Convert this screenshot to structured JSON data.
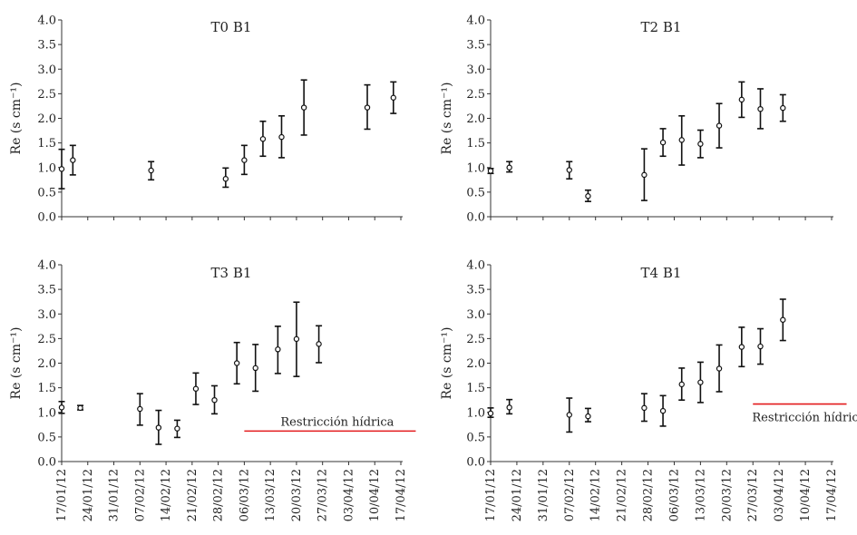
{
  "chart_data": {
    "type": "scatter",
    "y_axis_label": "Re (s cm⁻¹)",
    "ylim": [
      0,
      4.0
    ],
    "y_ticks": [
      "0.0",
      "0.5",
      "1.0",
      "1.5",
      "2.0",
      "2.5",
      "3.0",
      "3.5",
      "4.0"
    ],
    "x_ticks": [
      "17/01/12",
      "24/01/12",
      "31/01/12",
      "07/02/12",
      "14/02/12",
      "21/02/12",
      "28/02/12",
      "06/03/12",
      "13/03/12",
      "20/03/12",
      "27/03/12",
      "03/04/12",
      "10/04/12",
      "17/04/12"
    ],
    "panels": [
      {
        "title": "T0 B1",
        "points": [
          {
            "date": "17/01/12",
            "y": 0.97,
            "low": 0.57,
            "high": 1.37
          },
          {
            "date": "20/01/12",
            "y": 1.15,
            "low": 0.85,
            "high": 1.45
          },
          {
            "date": "10/02/12",
            "y": 0.94,
            "low": 0.75,
            "high": 1.12
          },
          {
            "date": "01/03/12",
            "y": 0.77,
            "low": 0.6,
            "high": 0.99
          },
          {
            "date": "06/03/12",
            "y": 1.15,
            "low": 0.86,
            "high": 1.45
          },
          {
            "date": "11/03/12",
            "y": 1.58,
            "low": 1.23,
            "high": 1.94
          },
          {
            "date": "16/03/12",
            "y": 1.62,
            "low": 1.2,
            "high": 2.05
          },
          {
            "date": "22/03/12",
            "y": 2.22,
            "low": 1.66,
            "high": 2.78
          },
          {
            "date": "08/04/12",
            "y": 2.22,
            "low": 1.78,
            "high": 2.68
          },
          {
            "date": "15/04/12",
            "y": 2.42,
            "low": 2.1,
            "high": 2.74
          }
        ]
      },
      {
        "title": "T2 B1",
        "points": [
          {
            "date": "17/01/12",
            "y": 0.93,
            "low": 0.88,
            "high": 0.98
          },
          {
            "date": "22/01/12",
            "y": 1.0,
            "low": 0.91,
            "high": 1.12
          },
          {
            "date": "07/02/12",
            "y": 0.95,
            "low": 0.77,
            "high": 1.12
          },
          {
            "date": "12/02/12",
            "y": 0.42,
            "low": 0.31,
            "high": 0.54
          },
          {
            "date": "27/02/12",
            "y": 0.85,
            "low": 0.33,
            "high": 1.38
          },
          {
            "date": "03/03/12",
            "y": 1.51,
            "low": 1.23,
            "high": 1.79
          },
          {
            "date": "08/03/12",
            "y": 1.56,
            "low": 1.05,
            "high": 2.05
          },
          {
            "date": "13/03/12",
            "y": 1.48,
            "low": 1.2,
            "high": 1.76
          },
          {
            "date": "18/03/12",
            "y": 1.85,
            "low": 1.4,
            "high": 2.3
          },
          {
            "date": "24/03/12",
            "y": 2.38,
            "low": 2.02,
            "high": 2.74
          },
          {
            "date": "29/03/12",
            "y": 2.19,
            "low": 1.79,
            "high": 2.6
          },
          {
            "date": "04/04/12",
            "y": 2.21,
            "low": 1.94,
            "high": 2.48
          }
        ]
      },
      {
        "title": "T3 B1",
        "annotation": "Restricción hídrica",
        "restriction": {
          "start": "06/03/12",
          "end": "21/04/12",
          "y": 0.62
        },
        "points": [
          {
            "date": "17/01/12",
            "y": 1.1,
            "low": 0.98,
            "high": 1.22
          },
          {
            "date": "22/01/12",
            "y": 1.09,
            "low": 1.05,
            "high": 1.14
          },
          {
            "date": "07/02/12",
            "y": 1.07,
            "low": 0.74,
            "high": 1.38
          },
          {
            "date": "12/02/12",
            "y": 0.69,
            "low": 0.35,
            "high": 1.04
          },
          {
            "date": "17/02/12",
            "y": 0.67,
            "low": 0.49,
            "high": 0.84
          },
          {
            "date": "22/02/12",
            "y": 1.48,
            "low": 1.16,
            "high": 1.8
          },
          {
            "date": "27/02/12",
            "y": 1.25,
            "low": 0.97,
            "high": 1.54
          },
          {
            "date": "04/03/12",
            "y": 2.0,
            "low": 1.58,
            "high": 2.42
          },
          {
            "date": "09/03/12",
            "y": 1.9,
            "low": 1.43,
            "high": 2.38
          },
          {
            "date": "15/03/12",
            "y": 2.28,
            "low": 1.79,
            "high": 2.75
          },
          {
            "date": "20/03/12",
            "y": 2.49,
            "low": 1.73,
            "high": 3.24
          },
          {
            "date": "26/03/12",
            "y": 2.39,
            "low": 2.01,
            "high": 2.76
          }
        ]
      },
      {
        "title": "T4 B1",
        "annotation": "Restricción hídrica",
        "restriction": {
          "start": "27/03/12",
          "end": "21/04/12",
          "y": 1.17
        },
        "points": [
          {
            "date": "17/01/12",
            "y": 0.98,
            "low": 0.9,
            "high": 1.09
          },
          {
            "date": "22/01/12",
            "y": 1.1,
            "low": 0.97,
            "high": 1.26
          },
          {
            "date": "07/02/12",
            "y": 0.95,
            "low": 0.6,
            "high": 1.29
          },
          {
            "date": "12/02/12",
            "y": 0.92,
            "low": 0.81,
            "high": 1.08
          },
          {
            "date": "27/02/12",
            "y": 1.09,
            "low": 0.82,
            "high": 1.38
          },
          {
            "date": "03/03/12",
            "y": 1.03,
            "low": 0.72,
            "high": 1.34
          },
          {
            "date": "08/03/12",
            "y": 1.57,
            "low": 1.25,
            "high": 1.9
          },
          {
            "date": "13/03/12",
            "y": 1.61,
            "low": 1.2,
            "high": 2.02
          },
          {
            "date": "18/03/12",
            "y": 1.89,
            "low": 1.42,
            "high": 2.37
          },
          {
            "date": "24/03/12",
            "y": 2.33,
            "low": 1.93,
            "high": 2.73
          },
          {
            "date": "29/03/12",
            "y": 2.34,
            "low": 1.98,
            "high": 2.7
          },
          {
            "date": "04/04/12",
            "y": 2.88,
            "low": 2.46,
            "high": 3.3
          }
        ]
      }
    ]
  }
}
